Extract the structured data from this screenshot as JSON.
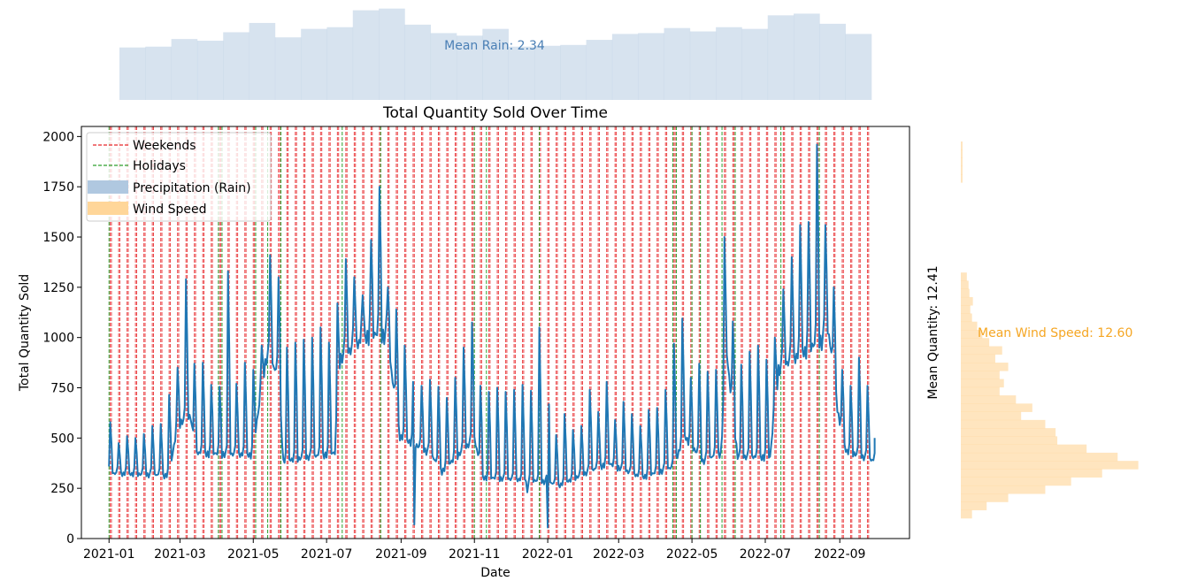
{
  "chart_data": {
    "type": "line",
    "title": "Total Quantity Sold Over Time",
    "xlabel": "Date",
    "ylabel": "Total Quantity Sold",
    "ylim": [
      0,
      2050
    ],
    "yticks": [
      0,
      250,
      500,
      750,
      1000,
      1250,
      1500,
      1750,
      2000
    ],
    "xticks": [
      "2021-01",
      "2021-03",
      "2021-05",
      "2021-07",
      "2021-09",
      "2021-11",
      "2022-01",
      "2022-03",
      "2022-05",
      "2022-07",
      "2022-09"
    ],
    "xrange": [
      "2020-12-09",
      "2022-10-29"
    ],
    "date_range": [
      "2021-01-01",
      "2022-09-30"
    ],
    "grid": false,
    "legend_position": "top-left",
    "legend": [
      "Weekends",
      "Holidays",
      "Precipitation (Rain)",
      "Wind Speed"
    ],
    "colors": {
      "line": "#1f77b4",
      "weekend": "#e8282b",
      "holiday": "#2ca02c",
      "rain": "#b0c8e0",
      "rain_text": "#4a7fb5",
      "wind": "#ffcc80",
      "wind_text": "#f5a623"
    },
    "holidays": [
      "2021-01-01",
      "2021-04-02",
      "2021-04-05",
      "2021-05-03",
      "2021-05-13",
      "2021-05-24",
      "2021-07-14",
      "2021-08-15",
      "2021-11-01",
      "2021-11-11",
      "2021-12-25",
      "2022-04-15",
      "2022-04-18",
      "2022-05-01",
      "2022-05-08",
      "2022-05-26",
      "2022-06-06",
      "2022-07-14",
      "2022-08-15"
    ],
    "weekly_peaks": [
      [
        "2021-01-02",
        580
      ],
      [
        "2021-01-09",
        475
      ],
      [
        "2021-01-16",
        510
      ],
      [
        "2021-01-23",
        500
      ],
      [
        "2021-01-30",
        520
      ],
      [
        "2021-02-06",
        560
      ],
      [
        "2021-02-13",
        570
      ],
      [
        "2021-02-20",
        715
      ],
      [
        "2021-02-27",
        850
      ],
      [
        "2021-03-06",
        1290
      ],
      [
        "2021-03-13",
        870
      ],
      [
        "2021-03-20",
        875
      ],
      [
        "2021-03-27",
        765
      ],
      [
        "2021-04-03",
        755
      ],
      [
        "2021-04-10",
        1330
      ],
      [
        "2021-04-17",
        770
      ],
      [
        "2021-04-24",
        875
      ],
      [
        "2021-05-01",
        840
      ],
      [
        "2021-05-08",
        960
      ],
      [
        "2021-05-15",
        1410
      ],
      [
        "2021-05-22",
        1300
      ],
      [
        "2021-05-29",
        950
      ],
      [
        "2021-06-05",
        975
      ],
      [
        "2021-06-12",
        990
      ],
      [
        "2021-06-19",
        1000
      ],
      [
        "2021-06-26",
        1050
      ],
      [
        "2021-07-03",
        975
      ],
      [
        "2021-07-10",
        1170
      ],
      [
        "2021-07-17",
        1390
      ],
      [
        "2021-07-24",
        1300
      ],
      [
        "2021-07-31",
        1210
      ],
      [
        "2021-08-07",
        1485
      ],
      [
        "2021-08-14",
        1750
      ],
      [
        "2021-08-21",
        1250
      ],
      [
        "2021-08-28",
        1140
      ],
      [
        "2021-09-04",
        960
      ],
      [
        "2021-09-11",
        780
      ],
      [
        "2021-09-18",
        760
      ],
      [
        "2021-09-25",
        790
      ],
      [
        "2021-10-02",
        755
      ],
      [
        "2021-10-09",
        700
      ],
      [
        "2021-10-16",
        800
      ],
      [
        "2021-10-23",
        950
      ],
      [
        "2021-10-30",
        1075
      ],
      [
        "2021-11-06",
        760
      ],
      [
        "2021-11-13",
        730
      ],
      [
        "2021-11-20",
        750
      ],
      [
        "2021-11-27",
        730
      ],
      [
        "2021-12-04",
        740
      ],
      [
        "2021-12-11",
        765
      ],
      [
        "2021-12-18",
        735
      ],
      [
        "2021-12-25",
        1050
      ],
      [
        "2022-01-01",
        930
      ],
      [
        "2022-01-08",
        515
      ],
      [
        "2022-01-15",
        620
      ],
      [
        "2022-01-22",
        540
      ],
      [
        "2022-01-29",
        560
      ],
      [
        "2022-02-05",
        740
      ],
      [
        "2022-02-12",
        630
      ],
      [
        "2022-02-19",
        780
      ],
      [
        "2022-02-26",
        590
      ],
      [
        "2022-03-05",
        680
      ],
      [
        "2022-03-12",
        620
      ],
      [
        "2022-03-19",
        560
      ],
      [
        "2022-03-26",
        640
      ],
      [
        "2022-04-02",
        650
      ],
      [
        "2022-04-09",
        740
      ],
      [
        "2022-04-16",
        970
      ],
      [
        "2022-04-23",
        1095
      ],
      [
        "2022-04-30",
        800
      ],
      [
        "2022-05-07",
        870
      ],
      [
        "2022-05-14",
        830
      ],
      [
        "2022-05-21",
        840
      ],
      [
        "2022-05-28",
        1500
      ],
      [
        "2022-06-04",
        1080
      ],
      [
        "2022-06-11",
        865
      ],
      [
        "2022-06-18",
        930
      ],
      [
        "2022-06-25",
        960
      ],
      [
        "2022-07-02",
        890
      ],
      [
        "2022-07-09",
        1000
      ],
      [
        "2022-07-16",
        1240
      ],
      [
        "2022-07-23",
        1400
      ],
      [
        "2022-07-30",
        1560
      ],
      [
        "2022-08-06",
        1575
      ],
      [
        "2022-08-13",
        1960
      ],
      [
        "2022-08-20",
        1560
      ],
      [
        "2022-08-27",
        1250
      ],
      [
        "2022-09-03",
        840
      ],
      [
        "2022-09-10",
        760
      ],
      [
        "2022-09-17",
        900
      ],
      [
        "2022-09-24",
        760
      ]
    ],
    "base_level": [
      [
        "2021-01-01",
        320
      ],
      [
        "2021-02-20",
        310
      ],
      [
        "2021-02-27",
        560
      ],
      [
        "2021-03-10",
        600
      ],
      [
        "2021-03-13",
        420
      ],
      [
        "2021-04-30",
        410
      ],
      [
        "2021-05-12",
        900
      ],
      [
        "2021-05-22",
        800
      ],
      [
        "2021-05-26",
        380
      ],
      [
        "2021-07-08",
        420
      ],
      [
        "2021-07-12",
        880
      ],
      [
        "2021-08-05",
        1000
      ],
      [
        "2021-08-20",
        1000
      ],
      [
        "2021-08-31",
        500
      ],
      [
        "2021-09-25",
        420
      ],
      [
        "2021-10-05",
        330
      ],
      [
        "2021-11-01",
        490
      ],
      [
        "2021-11-08",
        300
      ],
      [
        "2021-12-31",
        280
      ],
      [
        "2022-01-10",
        260
      ],
      [
        "2022-02-20",
        370
      ],
      [
        "2022-03-20",
        300
      ],
      [
        "2022-04-15",
        350
      ],
      [
        "2022-04-25",
        500
      ],
      [
        "2022-05-10",
        380
      ],
      [
        "2022-05-25",
        420
      ],
      [
        "2022-05-30",
        900
      ],
      [
        "2022-06-08",
        400
      ],
      [
        "2022-07-05",
        400
      ],
      [
        "2022-07-12",
        830
      ],
      [
        "2022-08-23",
        1000
      ],
      [
        "2022-08-31",
        600
      ],
      [
        "2022-09-06",
        430
      ],
      [
        "2022-09-30",
        380
      ]
    ],
    "dips": [
      [
        "2021-09-12",
        70
      ],
      [
        "2022-01-01",
        55
      ],
      [
        "2021-12-15",
        230
      ]
    ],
    "end_value": 500,
    "mean_quantity_label": "Mean Quantity: 12.41",
    "rain_histogram": {
      "label": "Mean Rain: 2.34",
      "ylim": [
        0,
        115
      ],
      "values": [
        62,
        63,
        72,
        70,
        80,
        91,
        74,
        84,
        86,
        106,
        108,
        89,
        79,
        76,
        84,
        63,
        64,
        65,
        71,
        78,
        79,
        85,
        81,
        86,
        84,
        100,
        102,
        90,
        78
      ]
    },
    "wind_histogram": {
      "label": "Mean Wind Speed: 12.60",
      "xlim": [
        0,
        230
      ],
      "bins_top": 160,
      "bins_bottom": 586,
      "values": [
        2,
        2,
        2,
        2,
        2,
        0,
        0,
        0,
        0,
        0,
        0,
        0,
        0,
        0,
        0,
        0,
        7,
        9,
        10,
        14,
        11,
        13,
        19,
        25,
        33,
        48,
        40,
        55,
        45,
        50,
        45,
        64,
        83,
        70,
        98,
        110,
        112,
        146,
        182,
        206,
        164,
        128,
        98,
        55,
        30,
        13
      ]
    }
  }
}
